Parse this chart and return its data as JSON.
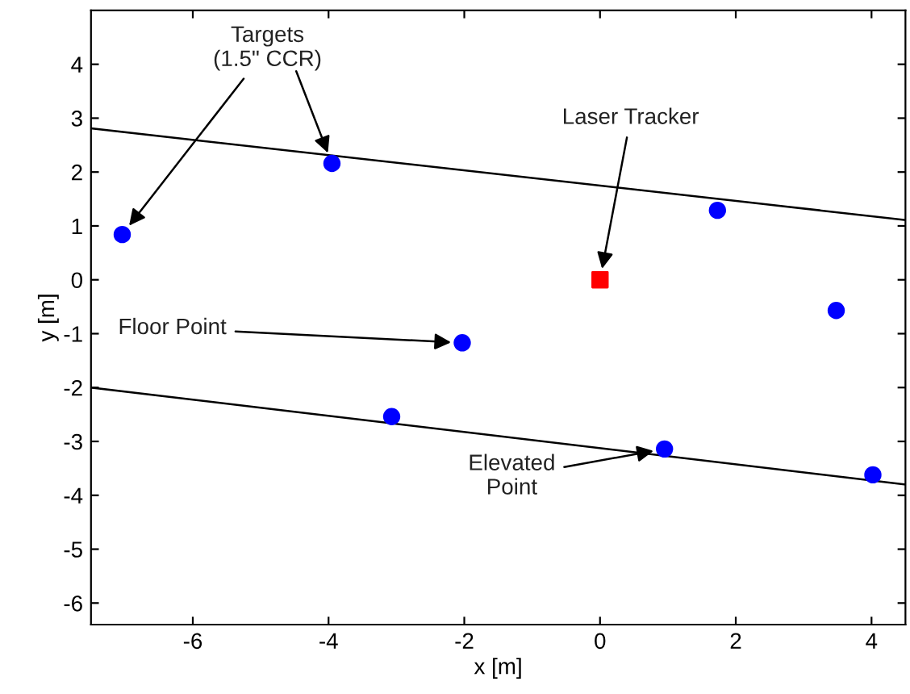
{
  "chart_data": {
    "type": "scatter",
    "xlabel": "x [m]",
    "ylabel": "y [m]",
    "xlim": [
      -7.5,
      4.5
    ],
    "ylim": [
      -6.4,
      5
    ],
    "xticks": [
      -6,
      -4,
      -2,
      0,
      2,
      4
    ],
    "yticks": [
      -6,
      -5,
      -4,
      -3,
      -2,
      -1,
      0,
      1,
      2,
      3,
      4
    ],
    "grid": false,
    "legend": false,
    "series": [
      {
        "marker": "circle",
        "color": "#0000ff",
        "x": [
          -7.04,
          -3.95,
          1.73,
          3.48,
          -2.03,
          -3.07,
          0.95,
          4.02
        ],
        "values": [
          0.84,
          2.16,
          1.29,
          -0.57,
          -1.17,
          -2.54,
          -3.14,
          -3.62
        ]
      },
      {
        "marker": "square",
        "color": "#ff0000",
        "x": [
          0
        ],
        "values": [
          0
        ]
      },
      {
        "type": "line",
        "marker": "none",
        "color": "#000000",
        "x": [
          -7.5,
          4.5
        ],
        "values": [
          2.81,
          1.11
        ]
      },
      {
        "type": "line",
        "marker": "none",
        "color": "#000000",
        "x": [
          -7.5,
          4.5
        ],
        "values": [
          -2.0,
          -3.8
        ]
      }
    ],
    "annotations": [
      {
        "text": "Targets\n(1.5\" CCR)",
        "x": -7.04,
        "y": 0.84
      },
      {
        "text": "Laser Tracker",
        "x": 0,
        "y": 0
      },
      {
        "text": "Floor Point",
        "x": -2.03,
        "y": -1.17
      },
      {
        "text": "Elevated\nPoint",
        "x": 0.95,
        "y": -3.14
      }
    ]
  }
}
